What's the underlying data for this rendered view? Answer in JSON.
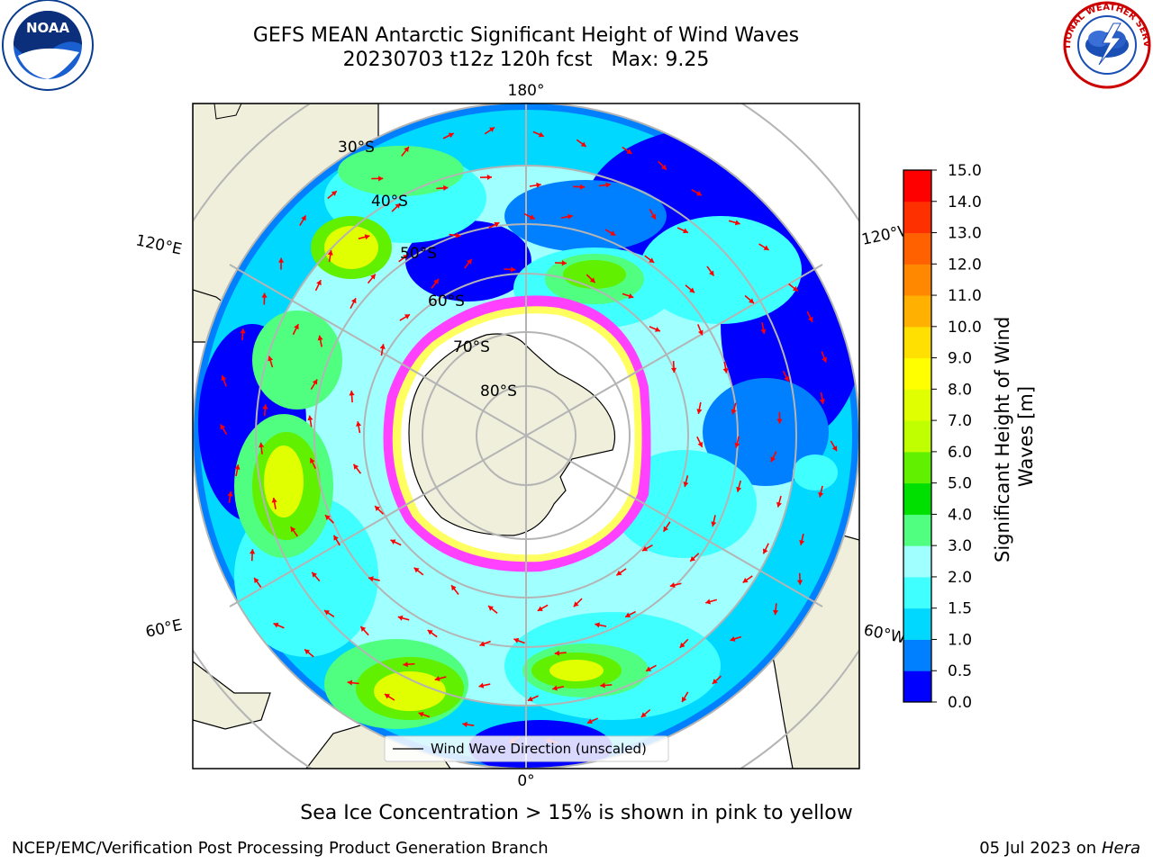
{
  "header": {
    "title_line1": "GEFS MEAN Antarctic Significant Height of Wind Waves",
    "title_line2": "20230703 t12z 120h fcst   Max: 9.25"
  },
  "logos": {
    "noaa_text": "NOAA",
    "nws_text": "NATIONAL WEATHER SERVICE"
  },
  "map": {
    "lat_labels": [
      "30°S",
      "40°S",
      "50°S",
      "60°S",
      "70°S",
      "80°S"
    ],
    "lon_labels": {
      "top": "180°",
      "bottom": "0°",
      "left_upper": "120°E",
      "left_lower": "60°E",
      "right_upper": "120°W",
      "right_lower": "60°W"
    },
    "legend_label": "Wind Wave Direction (unscaled)"
  },
  "colorbar": {
    "label": "Significant Height of Wind Waves [m]",
    "ticks": [
      "0.0",
      "0.5",
      "1.0",
      "1.5",
      "2.0",
      "3.0",
      "4.0",
      "5.0",
      "6.0",
      "7.0",
      "8.0",
      "9.0",
      "10.0",
      "11.0",
      "12.0",
      "13.0",
      "14.0",
      "15.0"
    ],
    "colors": [
      "#0000ff",
      "#0080ff",
      "#00d8ff",
      "#40ffff",
      "#a0ffff",
      "#50ff80",
      "#00e000",
      "#60f000",
      "#c0ff00",
      "#e0ff00",
      "#ffff00",
      "#ffe000",
      "#ffb000",
      "#ff8800",
      "#ff6000",
      "#ff3000",
      "#ff0000"
    ]
  },
  "caption": "Sea Ice Concentration > 15% is shown in pink to yellow",
  "footer": {
    "left": "NCEP/EMC/Verification Post Processing Product Generation Branch",
    "right_date": "05 Jul 2023 on ",
    "right_host": "Hera"
  }
}
